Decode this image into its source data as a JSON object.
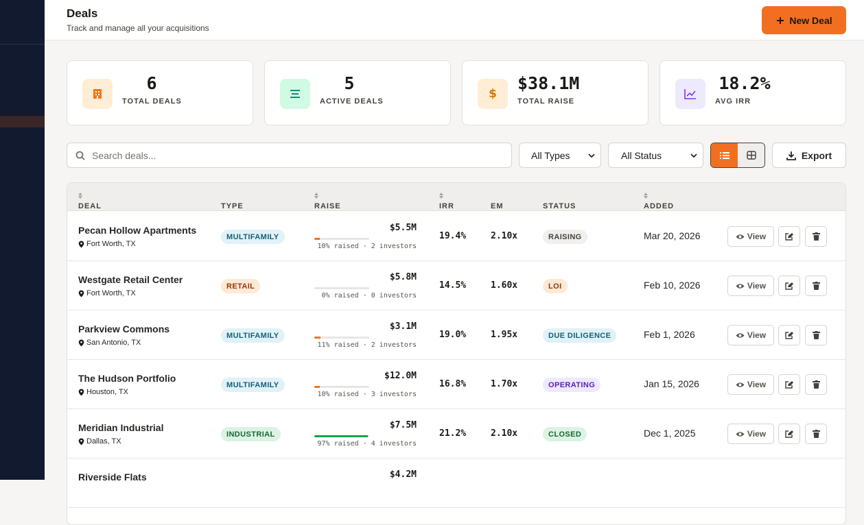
{
  "header": {
    "title": "Deals",
    "subtitle": "Track and manage all your acquisitions",
    "new_button": "New Deal"
  },
  "stats": [
    {
      "value": "6",
      "label": "TOTAL DEALS",
      "color": "#f97316",
      "bg": "#ffedd5"
    },
    {
      "value": "5",
      "label": "ACTIVE DEALS",
      "color": "#059669",
      "bg": "#d1fae5"
    },
    {
      "value": "$38.1M",
      "label": "TOTAL RAISE",
      "color": "#d97706",
      "bg": "#ffedd5"
    },
    {
      "value": "18.2%",
      "label": "AVG IRR",
      "color": "#7c3aed",
      "bg": "#ede9fe"
    }
  ],
  "toolbar": {
    "search_placeholder": "Search deals...",
    "type_filter": "All Types",
    "status_filter": "All Status",
    "export": "Export"
  },
  "table": {
    "columns": [
      "DEAL",
      "TYPE",
      "RAISE",
      "IRR",
      "EM",
      "STATUS",
      "ADDED"
    ],
    "view_label": "View",
    "rows": [
      {
        "name": "Pecan Hollow Apartments",
        "location": "Fort Worth, TX",
        "type": "MULTIFAMILY",
        "type_color": "#155e75",
        "type_bg": "#e0f2f7",
        "raise": "$5.5M",
        "raised_pct": 10,
        "bar_color": "#f97316",
        "raised_label": "10% raised · 2 investors",
        "irr": "19.4%",
        "em": "2.10x",
        "status": "RAISING",
        "status_color": "#44403c",
        "status_bg": "#f0efed",
        "added": "Mar 20, 2026"
      },
      {
        "name": "Westgate Retail Center",
        "location": "Fort Worth, TX",
        "type": "RETAIL",
        "type_color": "#9a3412",
        "type_bg": "#fde9d4",
        "raise": "$5.8M",
        "raised_pct": 0,
        "bar_color": "#f97316",
        "raised_label": "0% raised · 0 investors",
        "irr": "14.5%",
        "em": "1.60x",
        "status": "LOI",
        "status_color": "#9a3412",
        "status_bg": "#fde9d4",
        "added": "Feb 10, 2026"
      },
      {
        "name": "Parkview Commons",
        "location": "San Antonio, TX",
        "type": "MULTIFAMILY",
        "type_color": "#155e75",
        "type_bg": "#e0f2f7",
        "raise": "$3.1M",
        "raised_pct": 11,
        "bar_color": "#f97316",
        "raised_label": "11% raised · 2 investors",
        "irr": "19.0%",
        "em": "1.95x",
        "status": "DUE DILIGENCE",
        "status_color": "#155e75",
        "status_bg": "#e0f2f7",
        "added": "Feb 1, 2026"
      },
      {
        "name": "The Hudson Portfolio",
        "location": "Houston, TX",
        "type": "MULTIFAMILY",
        "type_color": "#155e75",
        "type_bg": "#e0f2f7",
        "raise": "$12.0M",
        "raised_pct": 10,
        "bar_color": "#f97316",
        "raised_label": "10% raised · 3 investors",
        "irr": "16.8%",
        "em": "1.70x",
        "status": "OPERATING",
        "status_color": "#5b21b6",
        "status_bg": "#ede9fe",
        "added": "Jan 15, 2026"
      },
      {
        "name": "Meridian Industrial",
        "location": "Dallas, TX",
        "type": "INDUSTRIAL",
        "type_color": "#166534",
        "type_bg": "#dcf3e4",
        "raise": "$7.5M",
        "raised_pct": 97,
        "bar_color": "#16a34a",
        "raised_label": "97% raised · 4 investors",
        "irr": "21.2%",
        "em": "2.10x",
        "status": "CLOSED",
        "status_color": "#166534",
        "status_bg": "#dcf3e4",
        "added": "Dec 1, 2025"
      },
      {
        "name": "Riverside Flats",
        "raise": "$4.2M"
      }
    ]
  }
}
